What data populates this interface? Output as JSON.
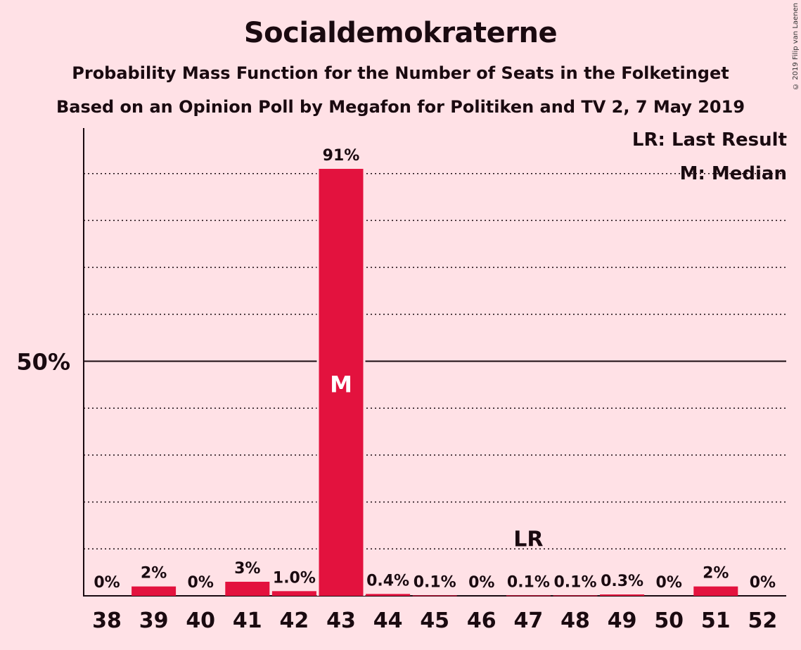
{
  "title": "Socialdemokraterne",
  "subtitle": "Probability Mass Function for the Number of Seats in the Folketinget",
  "subtitle2": "Based on an Opinion Poll by Megafon for Politiken and TV 2, 7 May 2019",
  "copyright": "© 2019 Filip van Laenen",
  "legend": {
    "last_result": "LR: Last Result",
    "median": "M: Median"
  },
  "colors": {
    "bar": "#E3123E",
    "background": "#FFE1E6"
  },
  "chart_data": {
    "type": "bar",
    "categories": [
      "38",
      "39",
      "40",
      "41",
      "42",
      "43",
      "44",
      "45",
      "46",
      "47",
      "48",
      "49",
      "50",
      "51",
      "52"
    ],
    "values": [
      0,
      2,
      0,
      3,
      1.0,
      91,
      0.4,
      0.1,
      0,
      0.1,
      0.1,
      0.3,
      0,
      2,
      0
    ],
    "data_labels": [
      "0%",
      "2%",
      "0%",
      "3%",
      "1.0%",
      "91%",
      "0.4%",
      "0.1%",
      "0%",
      "0.1%",
      "0.1%",
      "0.3%",
      "0%",
      "2%",
      "0%"
    ],
    "ylim": [
      0,
      100
    ],
    "ytick_label": "50%",
    "ytick_value": 50,
    "grid_step": 10,
    "grid": true,
    "median_category": "43",
    "median_marker": "M",
    "last_result_category": "47",
    "last_result_marker": "LR"
  }
}
